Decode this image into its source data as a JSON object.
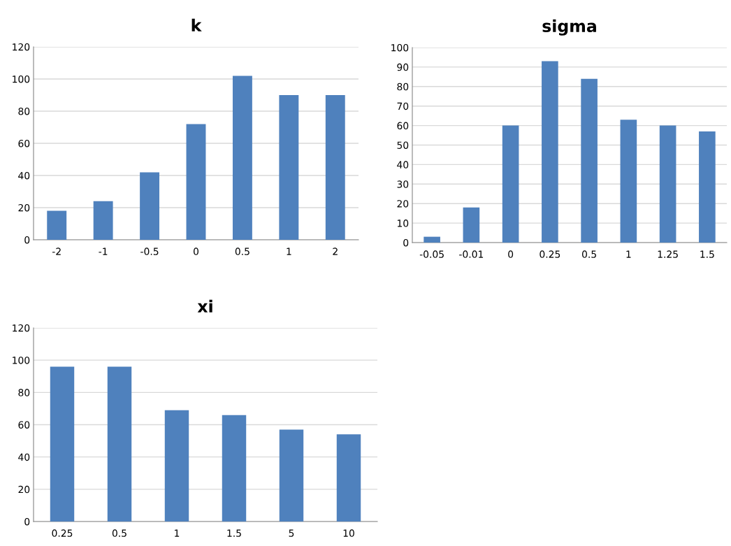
{
  "chart_data": [
    {
      "type": "bar",
      "title": "k",
      "categories": [
        "-2",
        "-1",
        "-0.5",
        "0",
        "0.5",
        "1",
        "2"
      ],
      "values": [
        18,
        24,
        42,
        72,
        102,
        90,
        90
      ],
      "color": "#4f81bd",
      "ylim": [
        0,
        120
      ],
      "yticks": [
        0,
        20,
        40,
        60,
        80,
        100,
        120
      ],
      "grid": "y"
    },
    {
      "type": "bar",
      "title": "sigma",
      "categories": [
        "-0.05",
        "-0.01",
        "0",
        "0.25",
        "0.5",
        "1",
        "1.25",
        "1.5"
      ],
      "values": [
        3,
        18,
        60,
        93,
        84,
        63,
        60,
        57
      ],
      "color": "#4f81bd",
      "ylim": [
        0,
        100
      ],
      "yticks": [
        0,
        10,
        20,
        30,
        40,
        50,
        60,
        70,
        80,
        90,
        100
      ],
      "grid": "y"
    },
    {
      "type": "bar",
      "title": "xi",
      "categories": [
        "0.25",
        "0.5",
        "1",
        "1.5",
        "5",
        "10"
      ],
      "values": [
        96,
        96,
        69,
        66,
        57,
        54
      ],
      "color": "#4f81bd",
      "ylim": [
        0,
        120
      ],
      "yticks": [
        0,
        20,
        40,
        60,
        80,
        100,
        120
      ],
      "grid": "y"
    }
  ]
}
